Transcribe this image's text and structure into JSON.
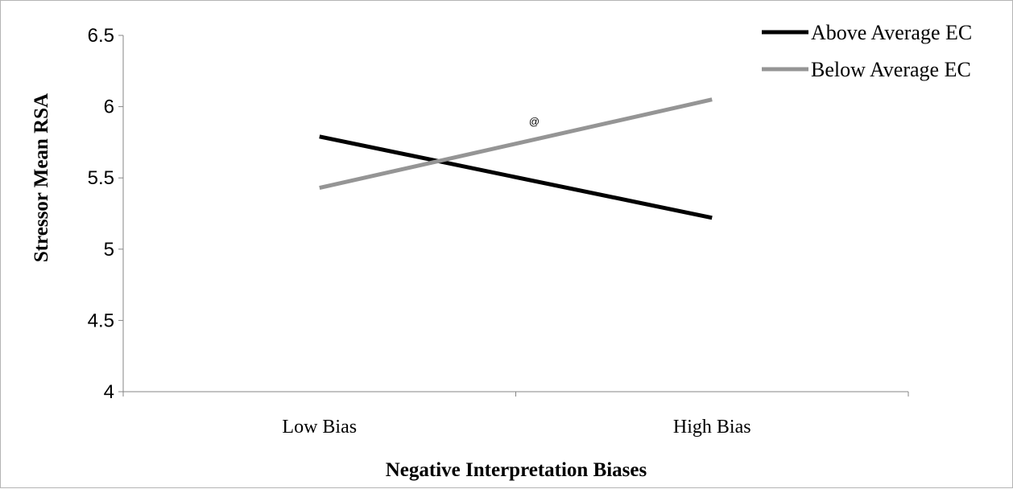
{
  "chart_data": {
    "type": "line",
    "categories": [
      "Low Bias",
      "High Bias"
    ],
    "series": [
      {
        "name": "Above Average EC",
        "values": [
          5.79,
          5.22
        ],
        "color": "#000000"
      },
      {
        "name": "Below Average EC",
        "values": [
          5.43,
          6.05
        ],
        "color": "#959595"
      }
    ],
    "title": "",
    "xlabel": "Negative Interpretation Biases",
    "ylabel": "Stressor Mean RSA",
    "ylim": [
      4,
      6.5
    ],
    "yticks": [
      "4",
      "4.5",
      "5",
      "5.5",
      "6",
      "6.5"
    ],
    "grid": false,
    "legend_position": "top-right",
    "annotations": [
      {
        "text": "@",
        "x": "High Bias",
        "y": 5.9
      }
    ]
  }
}
